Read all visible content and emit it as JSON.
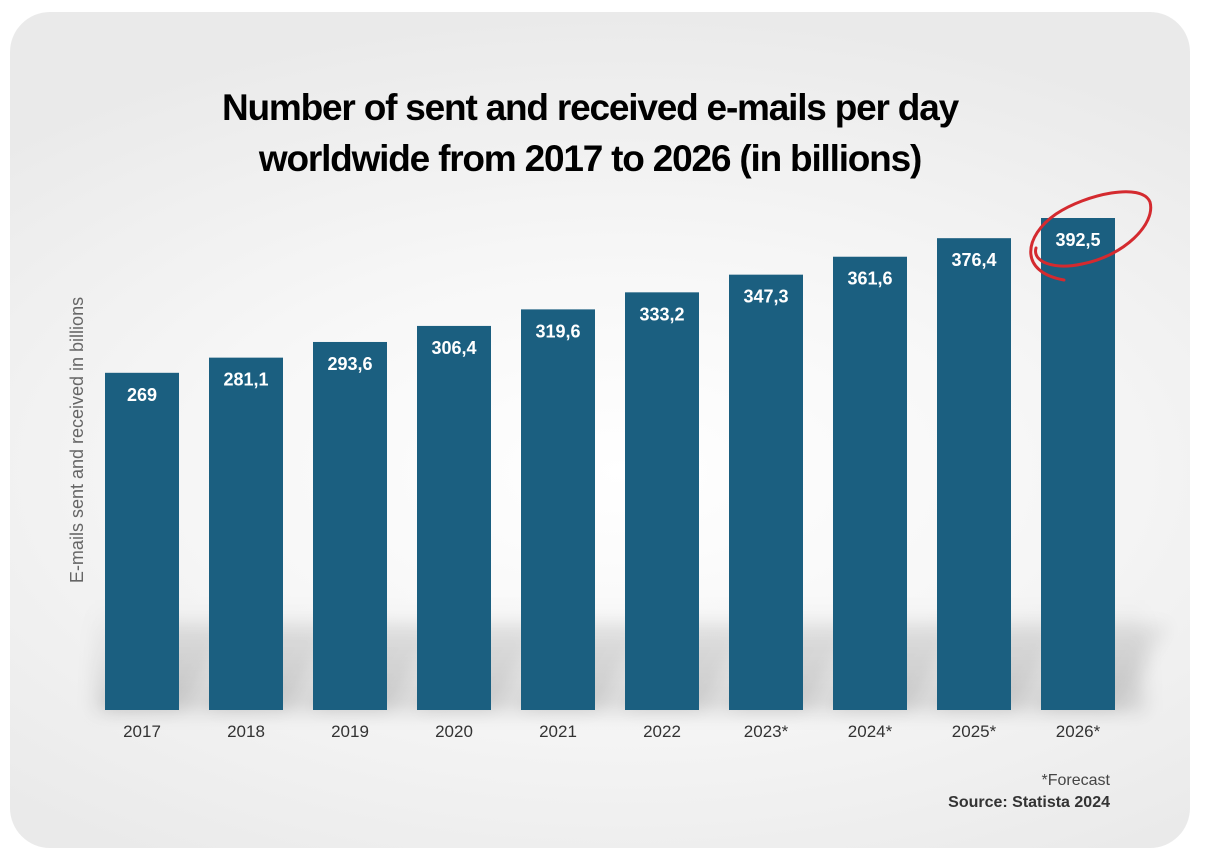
{
  "chart_data": {
    "type": "bar",
    "title": "Number of sent and received e-mails per day worldwide from 2017 to 2026 (in billions)",
    "title_lines": [
      "Number of sent and received e-mails per day",
      "worldwide from 2017 to 2026 (in billions)"
    ],
    "xlabel": "",
    "ylabel": "E-mails sent and received in billions",
    "categories": [
      "2017",
      "2018",
      "2019",
      "2020",
      "2021",
      "2022",
      "2023*",
      "2024*",
      "2025*",
      "2026*"
    ],
    "values": [
      269,
      281.1,
      293.6,
      306.4,
      319.6,
      333.2,
      347.3,
      361.6,
      376.4,
      392.5
    ],
    "value_labels": [
      "269",
      "281,1",
      "293,6",
      "306,4",
      "319,6",
      "333,2",
      "347,3",
      "361,6",
      "376,4",
      "392,5"
    ],
    "ylim": [
      0,
      400
    ],
    "grid": false,
    "highlighted_category": "2026*"
  },
  "colors": {
    "bar": "#1b5f80",
    "bar_dark": "#154d69",
    "highlight_circle": "#d42a2f",
    "value_label": "#ffffff",
    "tick_label": "#333333"
  },
  "footnote": "*Forecast",
  "source": "Source: Statista 2024"
}
